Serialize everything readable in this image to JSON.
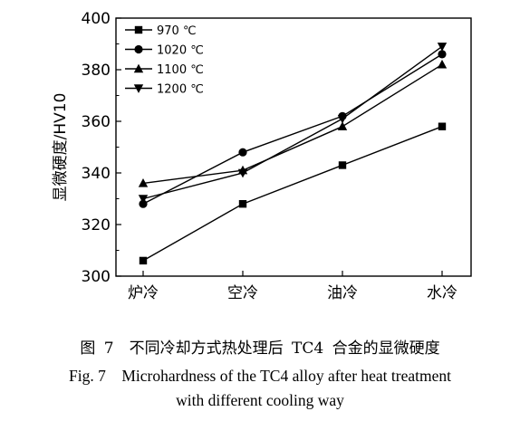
{
  "chart_data": {
    "type": "line",
    "categories": [
      "炉冷",
      "空冷",
      "油冷",
      "水冷"
    ],
    "ylabel": "显微硬度/HV10",
    "xlabel": "",
    "ylim": [
      300,
      400
    ],
    "yticks": [
      300,
      320,
      340,
      360,
      380,
      400
    ],
    "grid": false,
    "legend_position": "top-left",
    "series": [
      {
        "name": "970 ℃",
        "marker": "square",
        "values": [
          306,
          328,
          343,
          358
        ]
      },
      {
        "name": "1020 ℃",
        "marker": "circle",
        "values": [
          328,
          348,
          362,
          386
        ]
      },
      {
        "name": "1100 ℃",
        "marker": "triangle-up",
        "values": [
          336,
          341,
          358,
          382
        ]
      },
      {
        "name": "1200 ℃",
        "marker": "triangle-down",
        "values": [
          330,
          340,
          361,
          389
        ]
      }
    ]
  },
  "caption": {
    "cn": "图 7　不同冷却方式热处理后 TC4 合金的显微硬度",
    "en_line1": "Fig. 7　Microhardness of the TC4 alloy after heat treatment",
    "en_line2": "with different cooling way"
  }
}
